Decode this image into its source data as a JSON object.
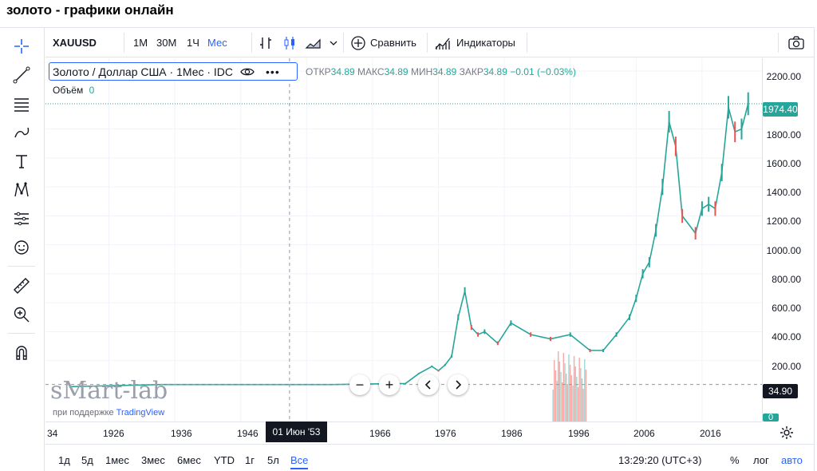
{
  "page_title": "золото - графики онлайн",
  "toolbar": {
    "symbol": "XAUUSD",
    "intervals": [
      "1М",
      "30М",
      "1Ч",
      "Мес"
    ],
    "active_interval": "Мес",
    "compare_label": "Сравнить",
    "indicators_label": "Индикаторы"
  },
  "legend": {
    "title": "Золото / Доллар США · 1Мес · IDC",
    "open_label": "ОТКР",
    "open": "34.89",
    "high_label": "МАКС",
    "high": "34.89",
    "low_label": "МИН",
    "low": "34.89",
    "close_label": "ЗАКР",
    "close": "34.89",
    "change": "−0.01 (−0.03%)",
    "volume_label": "Объём",
    "volume": "0"
  },
  "price_axis": {
    "ticks": [
      "2200.00",
      "1800.00",
      "1600.00",
      "1400.00",
      "1200.00",
      "1000.00",
      "800.00",
      "600.00",
      "400.00",
      "200.00"
    ],
    "last_price": "1974.40",
    "crosshair_price": "34.90",
    "volume_tag": "0"
  },
  "time_axis": {
    "ticks": [
      "34",
      "1926",
      "1936",
      "1946",
      "1966",
      "1976",
      "1986",
      "1996",
      "2006",
      "2016"
    ],
    "cursor_label": "01 Июн '53"
  },
  "bottom_bar": {
    "ranges": [
      "1д",
      "5д",
      "1мес",
      "3мес",
      "6мес",
      "YTD",
      "1г",
      "5л",
      "Все"
    ],
    "active_range": "Все",
    "clock": "13:29:20 (UTC+3)",
    "percent": "%",
    "log": "лог",
    "auto": "авто"
  },
  "watermark": "sMart-lab",
  "support_text": "при поддержке",
  "support_brand": "TradingView",
  "colors": {
    "accent": "#2962ff",
    "up": "#26a69a",
    "down": "#ef5350",
    "axis_text": "#131722"
  },
  "chart_data": {
    "type": "line",
    "title": "Золото / Доллар США · 1Мес · IDC",
    "x": [
      1920,
      1934,
      1950,
      1960,
      1968,
      1971,
      1973,
      1975,
      1976,
      1977,
      1978,
      1979,
      1980,
      1981,
      1982,
      1983,
      1985,
      1987,
      1990,
      1993,
      1996,
      1999,
      2001,
      2003,
      2005,
      2006,
      2007,
      2008,
      2009,
      2010,
      2011,
      2012,
      2013,
      2015,
      2016,
      2017,
      2018,
      2019,
      2020,
      2021,
      2022,
      2023
    ],
    "series": [
      {
        "values": [
          20.67,
          34.9,
          34.9,
          35,
          40,
          42,
          110,
          160,
          130,
          170,
          230,
          500,
          680,
          430,
          380,
          400,
          320,
          460,
          380,
          350,
          380,
          270,
          270,
          380,
          500,
          630,
          800,
          880,
          1100,
          1400,
          1850,
          1680,
          1200,
          1080,
          1250,
          1280,
          1250,
          1500,
          1950,
          1780,
          1800,
          1974.4
        ]
      }
    ],
    "ylim": [
      0,
      2300
    ],
    "xlim": [
      1920,
      2024
    ],
    "grid": true,
    "last_value": 1974.4
  }
}
